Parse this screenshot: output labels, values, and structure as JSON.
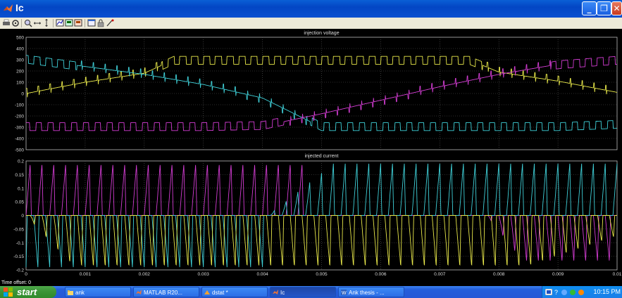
{
  "window": {
    "title": "Ic"
  },
  "toolbar": {
    "buttons": [
      "print-icon",
      "parameters-icon",
      "zoom-icon",
      "zoom-x-icon",
      "zoom-y-icon",
      "autoscale-icon",
      "save-axes-icon",
      "restore-axes-icon",
      "floating-scope-icon",
      "lock-icon",
      "signal-selection-icon"
    ]
  },
  "offset": {
    "label": "Time offset:  0"
  },
  "taskbar": {
    "start": "start",
    "tasks": [
      {
        "label": "ank",
        "icon": "folder-icon"
      },
      {
        "label": "MATLAB R20...",
        "icon": "matlab-icon"
      },
      {
        "label": "dstat *",
        "icon": "simulink-icon"
      },
      {
        "label": "Ic",
        "icon": "scope-icon"
      },
      {
        "label": "Ank thesis - ...",
        "icon": "word-icon"
      }
    ],
    "clock": "10:15 PM"
  },
  "colors": {
    "yellow": "#e8e84a",
    "cyan": "#3fd0d8",
    "magenta": "#d23cd2",
    "axes": "#000000",
    "grid": "#5a5a5a"
  },
  "chart_data": [
    {
      "type": "line",
      "title": "injection voltage",
      "xlim": [
        0,
        0.01
      ],
      "ylim": [
        -500,
        500
      ],
      "yticks": [
        500,
        400,
        300,
        200,
        100,
        0,
        -100,
        -200,
        -300,
        -400,
        -500
      ],
      "xticks": [
        "0",
        "0.001",
        "0.002",
        "0.003",
        "0.004",
        "0.005",
        "0.006",
        "0.007",
        "0.008",
        "0.009",
        "0.01"
      ],
      "series": [
        {
          "color": "yellow",
          "description": "sinusoid envelope with square ripple",
          "envelope_points": [
            [
              0,
              0
            ],
            [
              0.001,
              100
            ],
            [
              0.002,
              180
            ],
            [
              0.0025,
              300
            ],
            [
              0.005,
              300
            ],
            [
              0.0075,
              300
            ],
            [
              0.008,
              190
            ],
            [
              0.009,
              110
            ],
            [
              0.01,
              10
            ]
          ]
        },
        {
          "color": "cyan",
          "envelope_points": [
            [
              0,
              310
            ],
            [
              0.001,
              240
            ],
            [
              0.002,
              170
            ],
            [
              0.003,
              80
            ],
            [
              0.004,
              -40
            ],
            [
              0.005,
              -300
            ],
            [
              0.006,
              -300
            ],
            [
              0.007,
              -300
            ],
            [
              0.008,
              -300
            ],
            [
              0.009,
              -300
            ],
            [
              0.01,
              -280
            ]
          ]
        },
        {
          "color": "magenta",
          "envelope_points": [
            [
              0,
              -300
            ],
            [
              0.001,
              -300
            ],
            [
              0.002,
              -300
            ],
            [
              0.003,
              -300
            ],
            [
              0.004,
              -290
            ],
            [
              0.005,
              -180
            ],
            [
              0.006,
              -60
            ],
            [
              0.007,
              60
            ],
            [
              0.008,
              170
            ],
            [
              0.009,
              260
            ],
            [
              0.01,
              300
            ]
          ]
        }
      ]
    },
    {
      "type": "line",
      "title": "injected current",
      "xlim": [
        0,
        0.01
      ],
      "ylim": [
        -0.2,
        0.2
      ],
      "yticks": [
        "0.2",
        "0.15",
        "0.1",
        "0.05",
        "0",
        "-0.05",
        "-0.1",
        "-0.15",
        "-0.2"
      ],
      "xticks": [
        "0",
        "0.001",
        "0.002",
        "0.003",
        "0.004",
        "0.005",
        "0.006",
        "0.007",
        "0.008",
        "0.009",
        "0.01"
      ],
      "series": [
        {
          "color": "magenta",
          "description": "positive pulses until ~0.005 then negative after 0.008",
          "peak": 0.19
        },
        {
          "color": "cyan",
          "description": "negative pulses until ~0.0045 then positive",
          "peak": 0.19
        },
        {
          "color": "yellow",
          "description": "negative pulses throughout",
          "peak": -0.19
        }
      ]
    }
  ]
}
